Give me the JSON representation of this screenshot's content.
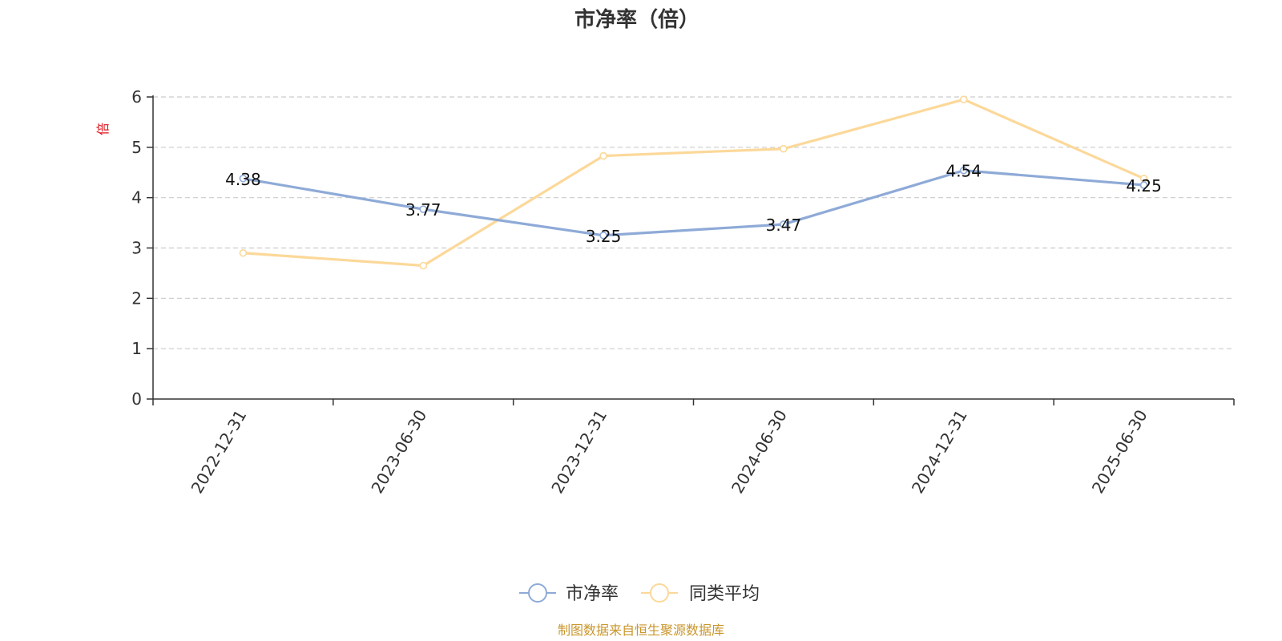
{
  "chart_data": {
    "type": "line",
    "title": "市净率（倍）",
    "ylabel": "倍",
    "xlabel": "",
    "categories": [
      "2022-12-31",
      "2023-06-30",
      "2023-12-31",
      "2024-06-30",
      "2024-12-31",
      "2025-06-30"
    ],
    "ylim": [
      0,
      6
    ],
    "yticks": [
      "0",
      "1",
      "2",
      "3",
      "4",
      "5",
      "6"
    ],
    "grid": true,
    "legend_position": "bottom-center",
    "series": [
      {
        "name": "市净率",
        "values": [
          4.38,
          3.77,
          3.25,
          3.47,
          4.54,
          4.25
        ],
        "labels": [
          "4.38",
          "3.77",
          "3.25",
          "3.47",
          "4.54",
          "4.25"
        ],
        "color": "#8eaad7"
      },
      {
        "name": "同类平均",
        "values": [
          2.9,
          2.65,
          4.83,
          4.97,
          5.95,
          4.38
        ],
        "color": "#fcd899"
      }
    ],
    "source_note": "制图数据来自恒生聚源数据库"
  }
}
